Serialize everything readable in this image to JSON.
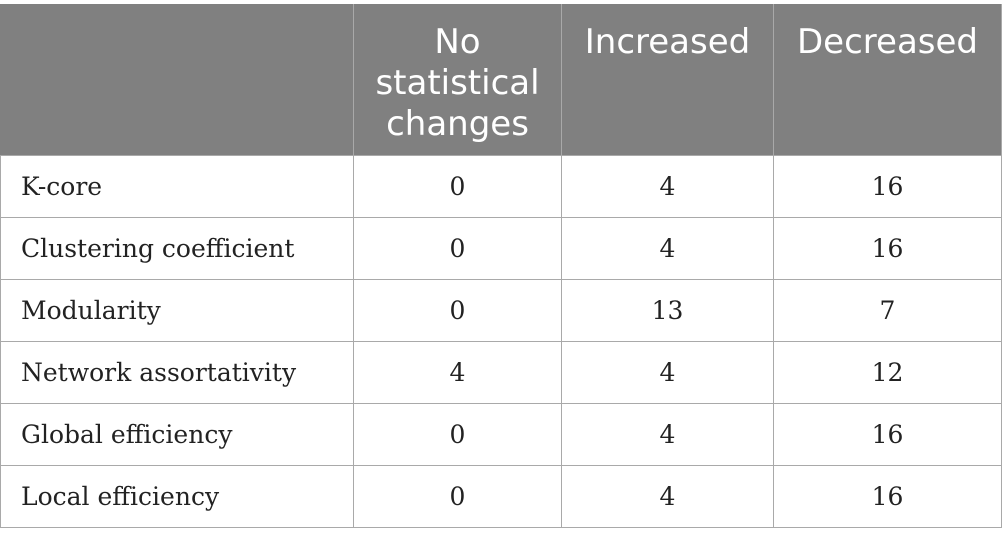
{
  "table": {
    "headers": [
      "",
      "No statistical changes",
      "Increased",
      "Decreased"
    ],
    "rows": [
      {
        "label": "K-core",
        "no_change": "0",
        "increased": "4",
        "decreased": "16"
      },
      {
        "label": "Clustering coefficient",
        "no_change": "0",
        "increased": "4",
        "decreased": "16"
      },
      {
        "label": "Modularity",
        "no_change": "0",
        "increased": "13",
        "decreased": "7"
      },
      {
        "label": "Network assortativity",
        "no_change": "4",
        "increased": "4",
        "decreased": "12"
      },
      {
        "label": "Global efficiency",
        "no_change": "0",
        "increased": "4",
        "decreased": "16"
      },
      {
        "label": "Local efficiency",
        "no_change": "0",
        "increased": "4",
        "decreased": "16"
      }
    ]
  },
  "colors": {
    "header_background": "#808080",
    "header_text": "#ffffff",
    "border": "#a9a9a9"
  }
}
